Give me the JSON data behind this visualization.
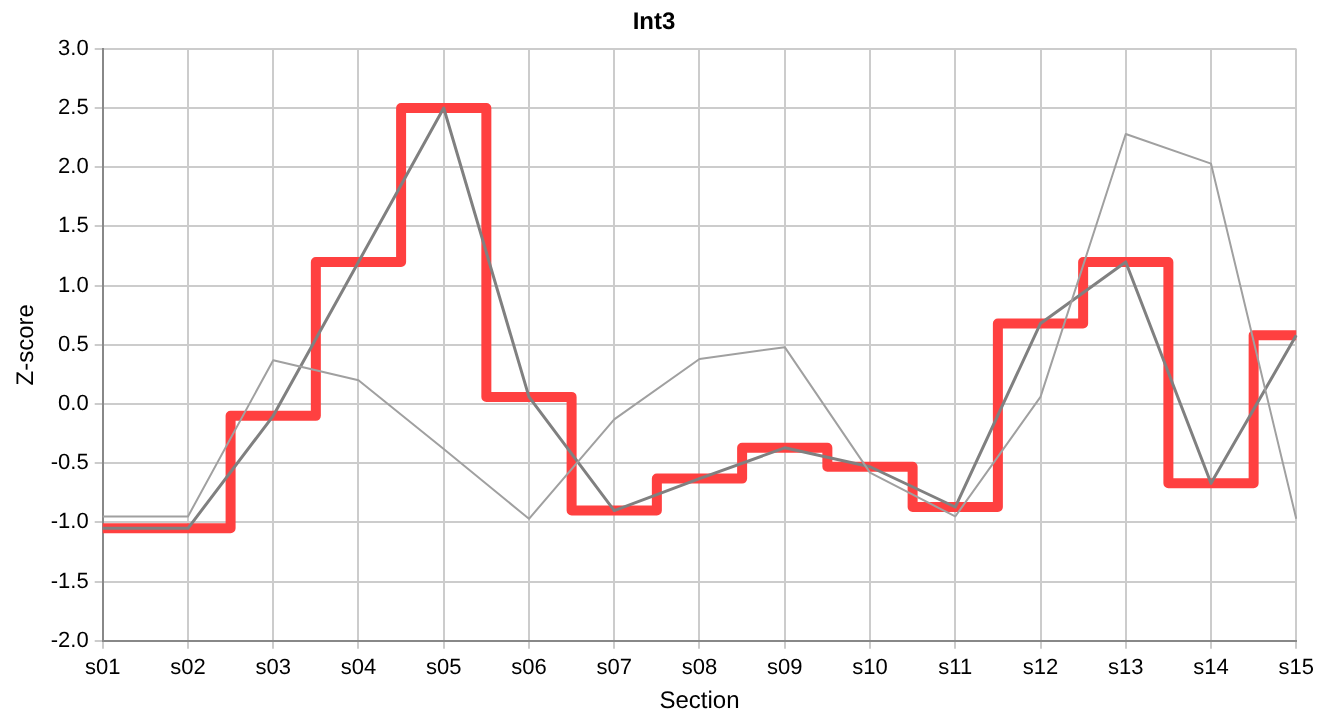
{
  "chart_data": {
    "type": "line",
    "title": "Int3",
    "xlabel": "Section",
    "ylabel": "Z-score",
    "categories": [
      "s01",
      "s02",
      "s03",
      "s04",
      "s05",
      "s06",
      "s07",
      "s08",
      "s09",
      "s10",
      "s11",
      "s12",
      "s13",
      "s14",
      "s15"
    ],
    "series": [
      {
        "type": "line",
        "color": "#a0a0a0",
        "values": [
          -0.95,
          -0.95,
          0.37,
          0.2,
          -0.38,
          -0.97,
          -0.13,
          0.38,
          0.48,
          -0.58,
          -0.95,
          0.06,
          2.28,
          2.03,
          -0.97
        ]
      },
      {
        "type": "line",
        "color": "#808080",
        "values": [
          -1.05,
          -1.05,
          -0.1,
          1.2,
          2.5,
          0.06,
          -0.9,
          -0.63,
          -0.37,
          -0.53,
          -0.87,
          0.68,
          1.2,
          -0.67,
          0.58
        ]
      },
      {
        "type": "step",
        "color": "#ff4040",
        "values": [
          -1.05,
          -1.05,
          -0.1,
          1.2,
          2.5,
          0.06,
          -0.9,
          -0.63,
          -0.37,
          -0.53,
          -0.87,
          0.68,
          1.2,
          -0.67,
          0.58
        ]
      }
    ],
    "ylim": [
      -2,
      3
    ],
    "yticks": [
      {
        "value": -2,
        "label": "-2.0"
      },
      {
        "value": -1.5,
        "label": "-1.5"
      },
      {
        "value": -1,
        "label": "-1.0"
      },
      {
        "value": -0.5,
        "label": "-0.5"
      },
      {
        "value": 0,
        "label": "0.0"
      },
      {
        "value": 0.5,
        "label": "0.5"
      },
      {
        "value": 1,
        "label": "1.0"
      },
      {
        "value": 1.5,
        "label": "1.5"
      },
      {
        "value": 2,
        "label": "2.0"
      },
      {
        "value": 2.5,
        "label": "2.5"
      },
      {
        "value": 3,
        "label": "3.0"
      }
    ],
    "grid": true,
    "legend": false,
    "marker": "none"
  }
}
